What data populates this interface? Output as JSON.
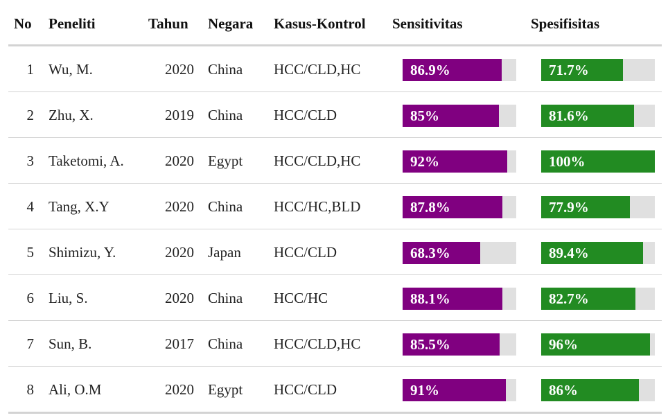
{
  "chart_data": {
    "type": "table",
    "columns": [
      "No",
      "Peneliti",
      "Tahun",
      "Negara",
      "Kasus-Kontrol",
      "Sensitivitas",
      "Spesifisitas"
    ],
    "rows": [
      {
        "no": "1",
        "peneliti": "Wu, M.",
        "tahun": "2020",
        "negara": "China",
        "kasus": "HCC/CLD,HC",
        "sens": 86.9,
        "sens_label": "86.9%",
        "spes": 71.7,
        "spes_label": "71.7%"
      },
      {
        "no": "2",
        "peneliti": "Zhu, X.",
        "tahun": "2019",
        "negara": "China",
        "kasus": "HCC/CLD",
        "sens": 85,
        "sens_label": "85%",
        "spes": 81.6,
        "spes_label": "81.6%"
      },
      {
        "no": "3",
        "peneliti": "Taketomi, A.",
        "tahun": "2020",
        "negara": "Egypt",
        "kasus": "HCC/CLD,HC",
        "sens": 92,
        "sens_label": "92%",
        "spes": 100,
        "spes_label": "100%"
      },
      {
        "no": "4",
        "peneliti": "Tang, X.Y",
        "tahun": "2020",
        "negara": "China",
        "kasus": "HCC/HC,BLD",
        "sens": 87.8,
        "sens_label": "87.8%",
        "spes": 77.9,
        "spes_label": "77.9%"
      },
      {
        "no": "5",
        "peneliti": "Shimizu, Y.",
        "tahun": "2020",
        "negara": "Japan",
        "kasus": "HCC/CLD",
        "sens": 68.3,
        "sens_label": "68.3%",
        "spes": 89.4,
        "spes_label": "89.4%"
      },
      {
        "no": "6",
        "peneliti": "Liu, S.",
        "tahun": "2020",
        "negara": "China",
        "kasus": "HCC/HC",
        "sens": 88.1,
        "sens_label": "88.1%",
        "spes": 82.7,
        "spes_label": "82.7%"
      },
      {
        "no": "7",
        "peneliti": "Sun, B.",
        "tahun": "2017",
        "negara": "China",
        "kasus": "HCC/CLD,HC",
        "sens": 85.5,
        "sens_label": "85.5%",
        "spes": 96,
        "spes_label": "96%"
      },
      {
        "no": "8",
        "peneliti": "Ali, O.M",
        "tahun": "2020",
        "negara": "Egypt",
        "kasus": "HCC/CLD",
        "sens": 91,
        "sens_label": "91%",
        "spes": 86,
        "spes_label": "86%"
      }
    ],
    "bar_max": 100,
    "colors": {
      "sensitivitas": "#800080",
      "spesifisitas": "#228b22",
      "track": "#e0e0e0"
    }
  }
}
